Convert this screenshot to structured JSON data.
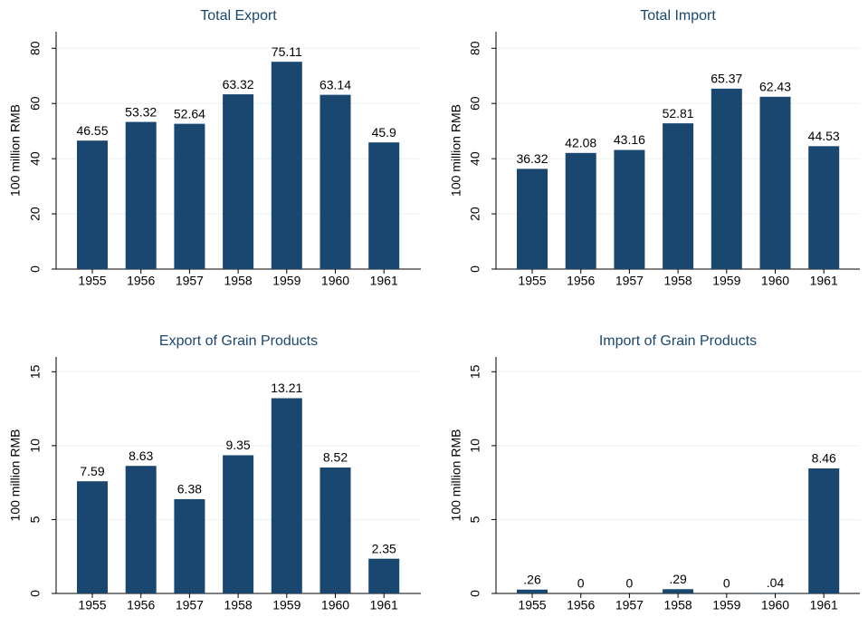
{
  "chart_data": [
    {
      "type": "bar",
      "title": "Total Export",
      "y_label": "100 million RMB",
      "categories": [
        "1955",
        "1956",
        "1957",
        "1958",
        "1959",
        "1960",
        "1961"
      ],
      "values": [
        46.55,
        53.32,
        52.64,
        63.32,
        75.11,
        63.14,
        45.9
      ],
      "color": "#1a476f",
      "ylim": [
        0,
        86
      ],
      "yticks": [
        0,
        20,
        40,
        60,
        80
      ],
      "grid": true
    },
    {
      "type": "bar",
      "title": "Total Import",
      "y_label": "100 million RMB",
      "categories": [
        "1955",
        "1956",
        "1957",
        "1958",
        "1959",
        "1960",
        "1961"
      ],
      "values": [
        36.32,
        42.08,
        43.16,
        52.81,
        65.37,
        62.43,
        44.53
      ],
      "color": "#1a476f",
      "ylim": [
        0,
        86
      ],
      "yticks": [
        0,
        20,
        40,
        60,
        80
      ],
      "grid": true
    },
    {
      "type": "bar",
      "title": "Export of Grain Products",
      "y_label": "100 million RMB",
      "categories": [
        "1955",
        "1956",
        "1957",
        "1958",
        "1959",
        "1960",
        "1961"
      ],
      "values": [
        7.59,
        8.63,
        6.38,
        9.35,
        13.21,
        8.52,
        2.35
      ],
      "color": "#1a476f",
      "ylim": [
        0,
        16
      ],
      "yticks": [
        0,
        5,
        10,
        15
      ],
      "grid": true
    },
    {
      "type": "bar",
      "title": "Import of Grain Products",
      "y_label": "100 million RMB",
      "categories": [
        "1955",
        "1956",
        "1957",
        "1958",
        "1959",
        "1960",
        "1961"
      ],
      "values": [
        0.26,
        0,
        0,
        0.29,
        0,
        0.04,
        8.46
      ],
      "value_labels": [
        ".26",
        "0",
        "0",
        ".29",
        "0",
        ".04",
        "8.46"
      ],
      "color": "#1a476f",
      "ylim": [
        0,
        16
      ],
      "yticks": [
        0,
        5,
        10,
        15
      ],
      "grid": true
    }
  ]
}
